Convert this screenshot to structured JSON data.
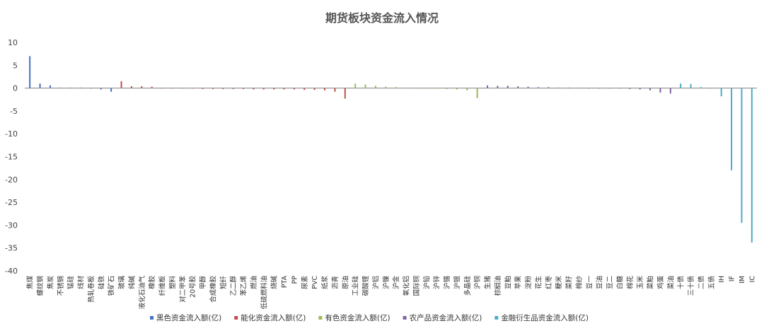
{
  "chart_data": {
    "type": "bar",
    "title": "期货板块资金流入情况",
    "xlabel": "",
    "ylabel": "",
    "ylim": [
      -40,
      10
    ],
    "yticks": [
      10,
      5,
      0,
      -5,
      -10,
      -15,
      -20,
      -25,
      -30,
      -35,
      -40
    ],
    "grid": false,
    "legend_position": "bottom",
    "series": [
      {
        "name": "黑色资金流入额(亿)",
        "color": "#4472C4"
      },
      {
        "name": "能化资金流入额(亿)",
        "color": "#C0504D"
      },
      {
        "name": "有色资金流入额(亿)",
        "color": "#9BBB59"
      },
      {
        "name": "农产品资金流入额(亿)",
        "color": "#8064A2"
      },
      {
        "name": "金融衍生品资金流入额(亿)",
        "color": "#4BACC6"
      }
    ],
    "categories": [
      "焦煤",
      "螺纹钢",
      "焦炭",
      "不锈钢",
      "锰硅",
      "线材",
      "热轧卷板",
      "硅铁",
      "铁矿石",
      "玻璃",
      "纯碱",
      "液化石油气",
      "橡胶",
      "纤维板",
      "塑料",
      "对二甲苯",
      "20号胶",
      "甲醇",
      "合成橡胶",
      "短纤",
      "乙二醇",
      "苯乙烯",
      "燃油",
      "低硫燃料油",
      "烧碱",
      "PTA",
      "PP",
      "尿素",
      "PVC",
      "纸浆",
      "沥青",
      "原油",
      "工业硅",
      "碳酸锂",
      "沪铝",
      "沪镍",
      "沪金",
      "氧化铝",
      "国际铜",
      "沪铅",
      "沪锌",
      "沪锡",
      "沪银",
      "多晶硅",
      "沪铜",
      "生猪",
      "棕榈油",
      "豆粕",
      "苹果",
      "淀粉",
      "花生",
      "红枣",
      "粳米",
      "菜籽",
      "棉纱",
      "豆一",
      "豆油",
      "豆二",
      "白糖",
      "棉花",
      "玉米",
      "菜粕",
      "鸡蛋",
      "菜油",
      "十债",
      "三十债",
      "二债",
      "五债",
      "IH",
      "IF",
      "IM",
      "IC"
    ],
    "values": [
      7.0,
      1.0,
      0.6,
      0.1,
      0.1,
      0.1,
      -0.1,
      -0.3,
      -0.8,
      1.5,
      0.4,
      0.4,
      0.3,
      -0.1,
      -0.1,
      -0.1,
      -0.1,
      -0.2,
      -0.2,
      -0.2,
      -0.2,
      -0.2,
      -0.3,
      -0.3,
      -0.3,
      -0.3,
      -0.3,
      -0.4,
      -0.4,
      -0.5,
      -0.8,
      -2.3,
      1.0,
      0.8,
      0.5,
      0.3,
      0.2,
      0.1,
      -0.1,
      -0.1,
      -0.1,
      -0.2,
      -0.3,
      -0.5,
      -2.2,
      0.6,
      0.5,
      0.5,
      0.4,
      0.3,
      0.2,
      0.2,
      0.1,
      0.1,
      0.1,
      -0.1,
      -0.1,
      -0.1,
      -0.1,
      -0.2,
      -0.3,
      -0.5,
      -1.0,
      -1.2,
      1.0,
      0.9,
      0.2,
      -0.1,
      -1.8,
      -18.0,
      -29.5,
      -33.8
    ],
    "groups": [
      0,
      0,
      0,
      0,
      0,
      0,
      0,
      0,
      0,
      1,
      1,
      1,
      1,
      1,
      1,
      1,
      1,
      1,
      1,
      1,
      1,
      1,
      1,
      1,
      1,
      1,
      1,
      1,
      1,
      1,
      1,
      1,
      2,
      2,
      2,
      2,
      2,
      2,
      2,
      2,
      2,
      2,
      2,
      2,
      2,
      3,
      3,
      3,
      3,
      3,
      3,
      3,
      3,
      3,
      3,
      3,
      3,
      3,
      3,
      3,
      3,
      3,
      3,
      3,
      4,
      4,
      4,
      4,
      4,
      4,
      4,
      4
    ]
  }
}
